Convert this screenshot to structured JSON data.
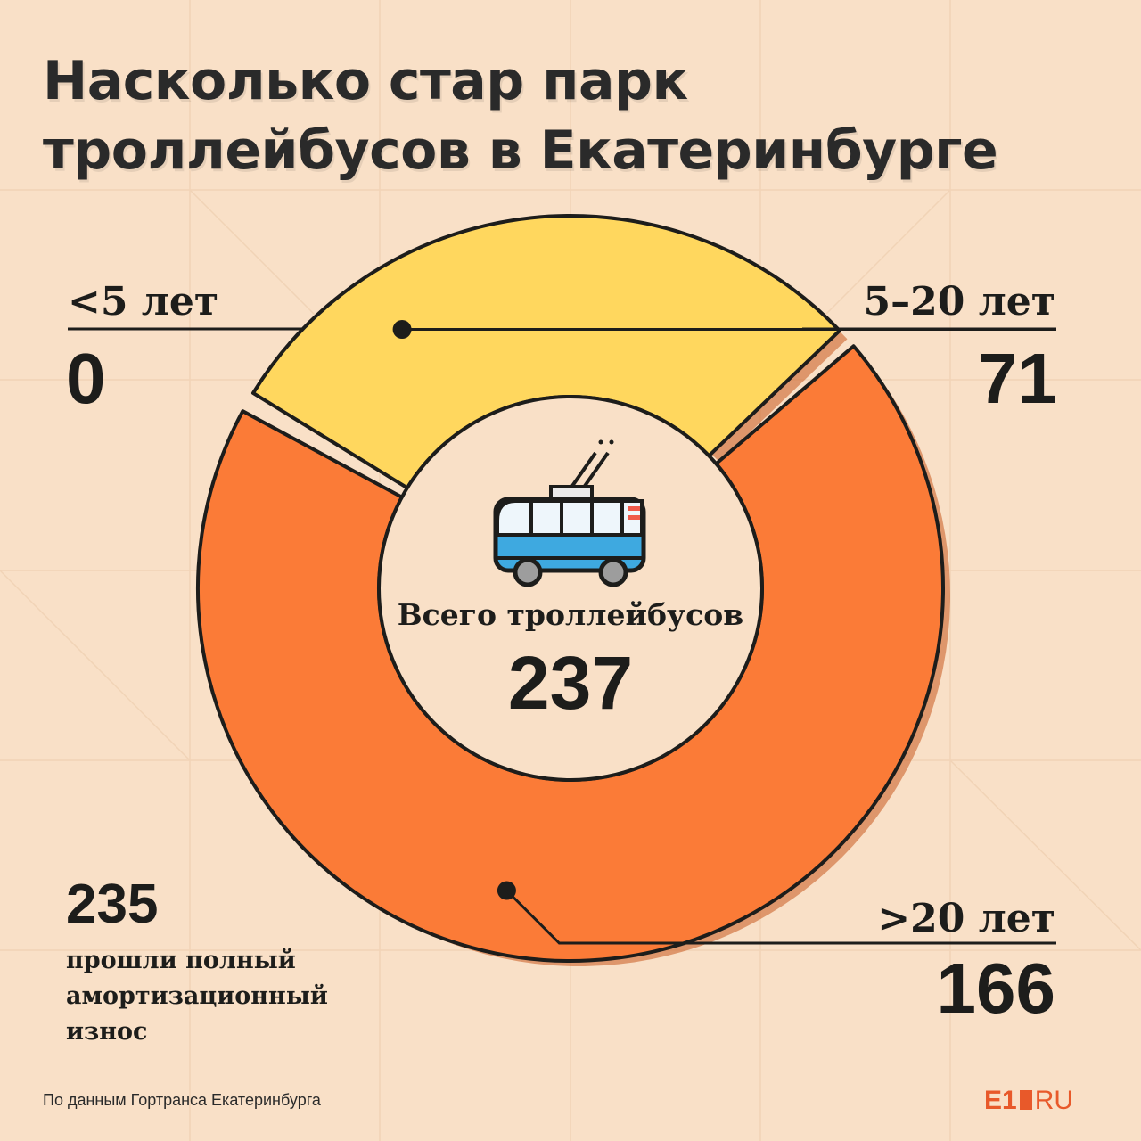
{
  "title": "Насколько стар парк троллейбусов в Екатеринбурге",
  "chart_data": {
    "type": "pie",
    "donut": true,
    "total_label": "Всего троллейбусов",
    "total": 237,
    "categories": [
      "<5 лет",
      "5–20 лет",
      ">20 лет"
    ],
    "values": [
      0,
      71,
      166
    ],
    "colors": [
      "#ffe066",
      "#ffd75e",
      "#fb7b37"
    ]
  },
  "labels": {
    "under5": {
      "category": "<5 лет",
      "value": "0"
    },
    "mid": {
      "category": "5–20 лет",
      "value": "71"
    },
    "over20": {
      "category": ">20 лет",
      "value": "166"
    }
  },
  "center": {
    "title": "Всего троллейбусов",
    "total": "237"
  },
  "note": {
    "number": "235",
    "text": "прошли полный амортизационный износ"
  },
  "source": "По данным Гортранса Екатеринбурга",
  "logo": {
    "e1": "E1",
    "ru": "RU"
  },
  "icons": [
    "trolleybus-icon"
  ]
}
